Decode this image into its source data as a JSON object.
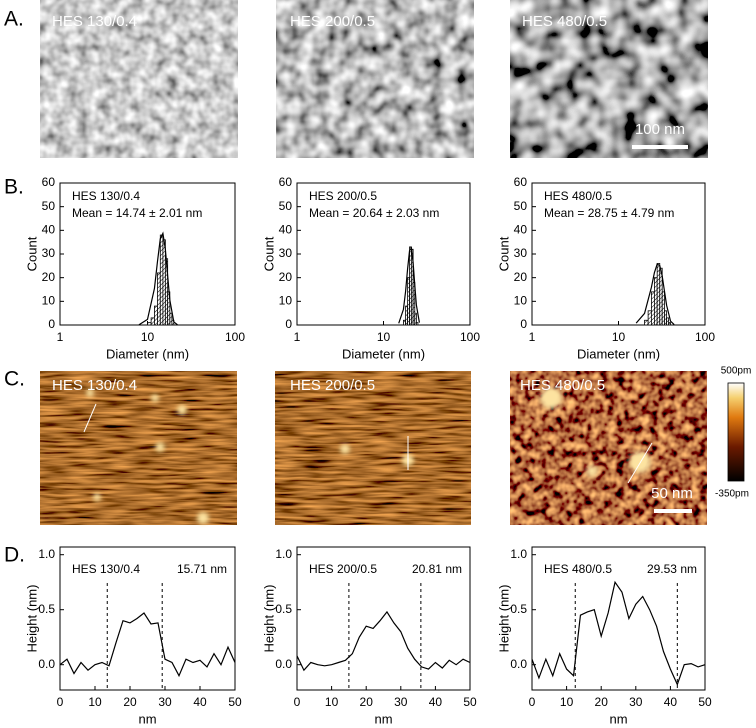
{
  "panels": [
    {
      "label": "A."
    },
    {
      "label": "B."
    },
    {
      "label": "C."
    },
    {
      "label": "D."
    }
  ],
  "tem_images": [
    {
      "caption": "HES 130/0.4"
    },
    {
      "caption": "HES 200/0.5"
    },
    {
      "caption": "HES 480/0.5",
      "scale_bar": "100 nm"
    }
  ],
  "afm_images": [
    {
      "caption": "HES 130/0.4"
    },
    {
      "caption": "HES 200/0.5"
    },
    {
      "caption": "HES 480/0.5",
      "scale_bar": "50 nm"
    }
  ],
  "colorbar": {
    "max_label": "500pm",
    "min_label": "-350pm"
  },
  "chart_data": [
    {
      "type": "histogram",
      "text": [
        "HES 130/0.4",
        "Mean = 14.74 ± 2.01 nm"
      ],
      "xlabel": "Diameter (nm)",
      "ylabel": "Count",
      "xscale": "log",
      "xlim": [
        1,
        100
      ],
      "xticks": [
        1,
        10,
        100
      ],
      "ylim": [
        0,
        60
      ],
      "yticks": [
        0,
        10,
        20,
        30,
        40,
        50,
        60
      ],
      "bins": [
        10,
        11,
        12,
        13,
        14,
        15,
        16,
        17,
        18,
        19,
        20
      ],
      "values": [
        1,
        3,
        8,
        22,
        38,
        36,
        28,
        14,
        5,
        2
      ],
      "fit": {
        "x": [
          8,
          10,
          12,
          13,
          14,
          15,
          16,
          17,
          18,
          20,
          22
        ],
        "values": [
          0.1,
          2.4,
          15.4,
          26.8,
          36.4,
          38.7,
          32.0,
          20.8,
          10.5,
          1.3,
          0.1
        ]
      }
    },
    {
      "type": "histogram",
      "text": [
        "HES 200/0.5",
        "Mean = 20.64 ± 2.03 nm"
      ],
      "xlabel": "Diameter (nm)",
      "ylabel": "Count",
      "xscale": "log",
      "xlim": [
        1,
        100
      ],
      "xticks": [
        1,
        10,
        100
      ],
      "ylim": [
        0,
        60
      ],
      "yticks": [
        0,
        10,
        20,
        30,
        40,
        50,
        60
      ],
      "bins": [
        17,
        18,
        19,
        20,
        21,
        22,
        23,
        24,
        25
      ],
      "values": [
        2,
        8,
        20,
        33,
        32,
        18,
        5,
        1
      ],
      "fit": {
        "x": [
          15,
          17,
          18,
          19,
          20,
          21,
          22,
          23,
          24,
          26
        ],
        "values": [
          0.7,
          6.6,
          14.2,
          23.8,
          31.4,
          32.5,
          26.4,
          16.8,
          8.4,
          1.0
        ]
      }
    },
    {
      "type": "histogram",
      "text": [
        "HES 480/0.5",
        "Mean = 28.75 ± 4.79 nm"
      ],
      "xlabel": "Diameter (nm)",
      "ylabel": "Count",
      "xscale": "log",
      "xlim": [
        1,
        100
      ],
      "xticks": [
        1,
        10,
        100
      ],
      "ylim": [
        0,
        60
      ],
      "yticks": [
        0,
        10,
        20,
        30,
        40,
        50,
        60
      ],
      "bins": [
        20,
        22,
        24,
        26,
        28,
        30,
        32,
        34,
        36,
        38,
        40
      ],
      "values": [
        2,
        6,
        14,
        20,
        26,
        24,
        14,
        6,
        3,
        1
      ],
      "fit": {
        "x": [
          16,
          20,
          24,
          26,
          28,
          30,
          32,
          34,
          36,
          40,
          44
        ],
        "values": [
          0.8,
          4.9,
          15.9,
          22.1,
          25.7,
          25.1,
          20.7,
          14.3,
          8.3,
          1.6,
          0.2
        ]
      }
    },
    {
      "type": "line",
      "text": [
        "HES 130/0.4",
        "15.71 nm"
      ],
      "xlabel": "nm",
      "ylabel": "Height (nm)",
      "xlim": [
        0,
        50
      ],
      "xticks": [
        0,
        10,
        20,
        30,
        40,
        50
      ],
      "ylim": [
        -0.23,
        1.07
      ],
      "yticks": [
        {
          "value": 0,
          "label": "0.0"
        },
        {
          "value": 0.5,
          "label": "0.5"
        },
        {
          "value": 1,
          "label": "1.0"
        }
      ],
      "vlines": [
        13.5,
        29.2
      ],
      "x": [
        0,
        2,
        4,
        6,
        8,
        10,
        12,
        14,
        16,
        18,
        20,
        22,
        24,
        26,
        28,
        30,
        32,
        34,
        36,
        38,
        40,
        42,
        44,
        46,
        48,
        50
      ],
      "values": [
        0.0,
        0.05,
        -0.08,
        0.02,
        -0.05,
        0.0,
        0.02,
        -0.01,
        0.2,
        0.4,
        0.38,
        0.42,
        0.47,
        0.37,
        0.38,
        0.05,
        0.02,
        -0.1,
        0.05,
        0.02,
        0.04,
        -0.02,
        0.1,
        0.0,
        0.16,
        0.02
      ]
    },
    {
      "type": "line",
      "text": [
        "HES 200/0.5",
        "20.81 nm"
      ],
      "xlabel": "nm",
      "ylabel": "Height (nm)",
      "xlim": [
        0,
        50
      ],
      "xticks": [
        0,
        10,
        20,
        30,
        40,
        50
      ],
      "ylim": [
        -0.23,
        1.07
      ],
      "yticks": [
        {
          "value": 0,
          "label": "0.0"
        },
        {
          "value": 0.5,
          "label": "0.5"
        },
        {
          "value": 1,
          "label": "1.0"
        }
      ],
      "vlines": [
        15,
        35.8
      ],
      "x": [
        0,
        2,
        4,
        6,
        8,
        10,
        12,
        14,
        16,
        18,
        20,
        22,
        24,
        26,
        28,
        30,
        32,
        34,
        36,
        38,
        40,
        42,
        44,
        46,
        48,
        50
      ],
      "values": [
        0.08,
        -0.05,
        0.02,
        0.0,
        -0.01,
        0.0,
        0.02,
        0.04,
        0.1,
        0.25,
        0.35,
        0.33,
        0.4,
        0.48,
        0.38,
        0.3,
        0.15,
        0.05,
        -0.02,
        -0.04,
        0.02,
        -0.03,
        0.04,
        0.0,
        0.05,
        0.02
      ]
    },
    {
      "type": "line",
      "text": [
        "HES 480/0.5",
        "29.53 nm"
      ],
      "xlabel": "nm",
      "ylabel": "Height (nm)",
      "xlim": [
        0,
        50
      ],
      "xticks": [
        0,
        10,
        20,
        30,
        40,
        50
      ],
      "ylim": [
        -0.23,
        1.07
      ],
      "yticks": [
        {
          "value": 0,
          "label": "0.0"
        },
        {
          "value": 0.5,
          "label": "0.5"
        },
        {
          "value": 1,
          "label": "1.0"
        }
      ],
      "vlines": [
        12.5,
        42
      ],
      "x": [
        0,
        2,
        4,
        6,
        8,
        10,
        12,
        14,
        16,
        18,
        20,
        22,
        24,
        26,
        28,
        30,
        32,
        34,
        36,
        38,
        40,
        42,
        44,
        46,
        48,
        50
      ],
      "values": [
        0.05,
        -0.12,
        0.05,
        -0.1,
        0.1,
        -0.04,
        -0.1,
        0.45,
        0.48,
        0.5,
        0.26,
        0.47,
        0.75,
        0.66,
        0.42,
        0.55,
        0.62,
        0.5,
        0.35,
        0.12,
        -0.04,
        -0.18,
        0.0,
        0.01,
        -0.02,
        0.0
      ]
    }
  ]
}
